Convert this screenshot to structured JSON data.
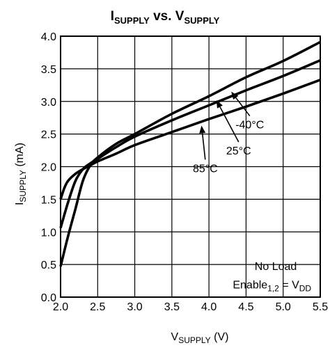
{
  "chart_data": {
    "type": "line",
    "title": {
      "main1": "I",
      "sub1": "SUPPLY",
      "mid": " vs. V",
      "sub2": "SUPPLY"
    },
    "xlabel": {
      "main": "V",
      "sub": "SUPPLY",
      "unit": " (V)"
    },
    "ylabel": {
      "main": "I",
      "sub": "SUPPLY",
      "unit": " (mA)"
    },
    "xlim": [
      2.0,
      5.5
    ],
    "ylim": [
      0.0,
      4.0
    ],
    "x_ticks": [
      "2.0",
      "2.5",
      "3.0",
      "3.5",
      "4.0",
      "4.5",
      "5.0",
      "5.5"
    ],
    "y_ticks": [
      "0.0",
      "0.5",
      "1.0",
      "1.5",
      "2.0",
      "2.5",
      "3.0",
      "3.5",
      "4.0"
    ],
    "grid": true,
    "series": [
      {
        "name": "-40°C",
        "x": [
          2.0,
          2.1,
          2.2,
          2.3,
          2.4,
          2.5,
          2.75,
          3.0,
          3.5,
          4.0,
          4.5,
          5.0,
          5.5
        ],
        "y": [
          0.47,
          0.93,
          1.35,
          1.78,
          2.02,
          2.14,
          2.35,
          2.5,
          2.81,
          3.08,
          3.37,
          3.62,
          3.91
        ]
      },
      {
        "name": "25°C",
        "x": [
          2.0,
          2.1,
          2.2,
          2.3,
          2.4,
          2.5,
          2.75,
          3.0,
          3.5,
          4.0,
          4.5,
          5.0,
          5.5
        ],
        "y": [
          1.06,
          1.45,
          1.78,
          1.96,
          2.05,
          2.12,
          2.3,
          2.46,
          2.71,
          2.94,
          3.17,
          3.39,
          3.63
        ]
      },
      {
        "name": "85°C",
        "x": [
          2.0,
          2.05,
          2.1,
          2.2,
          2.3,
          2.4,
          2.5,
          2.75,
          3.0,
          3.5,
          4.0,
          4.5,
          5.0,
          5.5
        ],
        "y": [
          1.5,
          1.67,
          1.78,
          1.89,
          1.96,
          2.02,
          2.08,
          2.2,
          2.33,
          2.53,
          2.73,
          2.92,
          3.12,
          3.33
        ]
      }
    ],
    "annotations": [
      {
        "text": "-40°C",
        "x": 4.55,
        "y": 2.65,
        "arrow_to": [
          4.3,
          3.15
        ]
      },
      {
        "text": "25°C",
        "x": 4.4,
        "y": 2.25,
        "arrow_to": [
          4.1,
          3.02
        ]
      },
      {
        "text": "85°C",
        "x": 3.95,
        "y": 1.98,
        "arrow_to": [
          3.9,
          2.63
        ]
      },
      {
        "text": "No Load",
        "x": 4.9,
        "y": 0.48
      },
      {
        "text_main": "Enable",
        "text_sub": "1,2",
        "text_mid": " = V",
        "text_sub2": "DD",
        "x": 4.85,
        "y": 0.2
      }
    ]
  }
}
